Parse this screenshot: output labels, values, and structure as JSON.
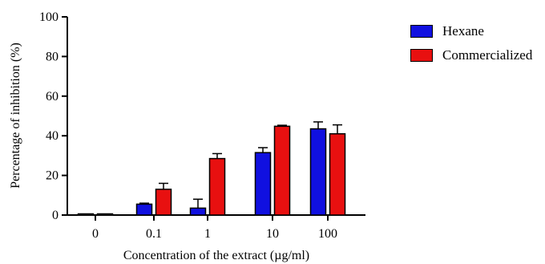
{
  "colors": {
    "hexane": "#1010e0",
    "commercialized": "#e81010"
  },
  "chart_data": {
    "type": "bar",
    "categories": [
      "0",
      "0.1",
      "1",
      "10",
      "100"
    ],
    "series": [
      {
        "name": "Hexane",
        "values": [
          0,
          5.5,
          3.5,
          31.5,
          43.5
        ],
        "errors": [
          0,
          0.5,
          4.5,
          2.5,
          3.5
        ]
      },
      {
        "name": "Commercialized",
        "values": [
          0,
          13,
          28.5,
          44.8,
          41
        ],
        "errors": [
          0,
          3,
          2.5,
          0.5,
          4.5
        ]
      }
    ],
    "title": "",
    "xlabel": "Concentration of the extract (µg/ml)",
    "ylabel": "Percentage of inhibition (%)",
    "ylim": [
      0,
      100
    ],
    "yticks": [
      0,
      20,
      40,
      60,
      80,
      100
    ],
    "legend_position": "top-right",
    "grid": false
  }
}
